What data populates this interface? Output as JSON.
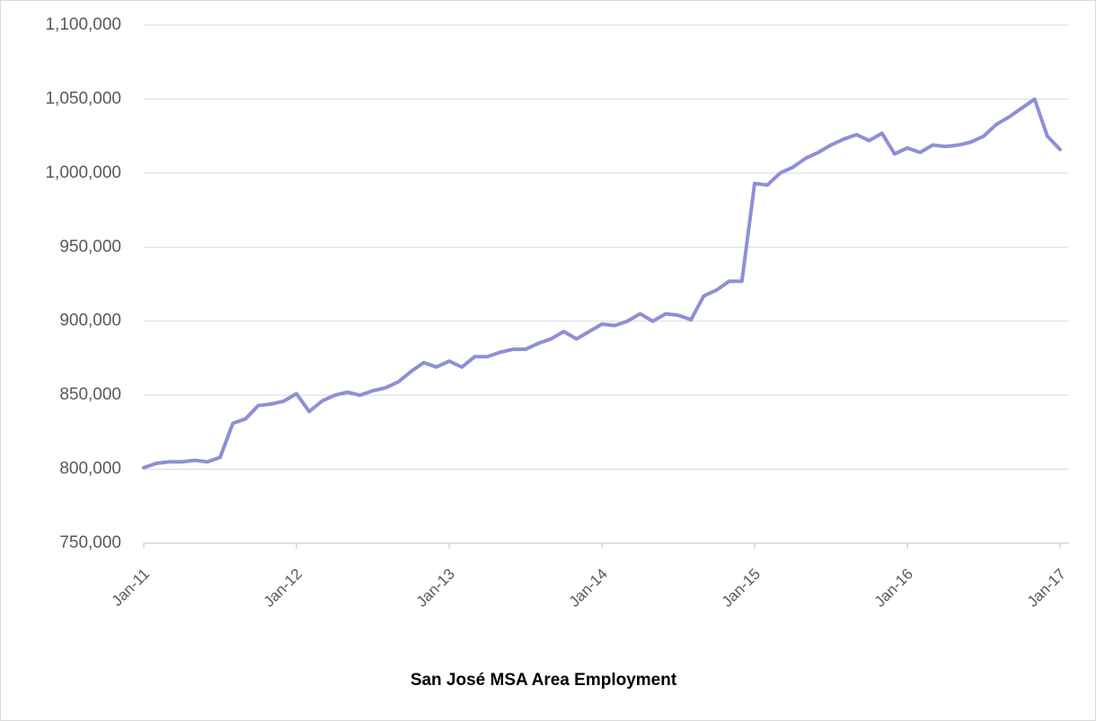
{
  "chart_data": {
    "type": "line",
    "title": "San José MSA Area Employment",
    "categories": [
      "Jan-11",
      null,
      null,
      null,
      null,
      null,
      null,
      null,
      null,
      null,
      null,
      null,
      "Jan-12",
      null,
      null,
      null,
      null,
      null,
      null,
      null,
      null,
      null,
      null,
      null,
      "Jan-13",
      null,
      null,
      null,
      null,
      null,
      null,
      null,
      null,
      null,
      null,
      null,
      "Jan-14",
      null,
      null,
      null,
      null,
      null,
      null,
      null,
      null,
      null,
      null,
      null,
      "Jan-15",
      null,
      null,
      null,
      null,
      null,
      null,
      null,
      null,
      null,
      null,
      null,
      "Jan-16",
      null,
      null,
      null,
      null,
      null,
      null,
      null,
      null,
      null,
      null,
      null,
      "Jan-17"
    ],
    "series": [
      {
        "color": "#8e8fd6",
        "values": [
          801000,
          804000,
          805000,
          805000,
          806000,
          805000,
          808000,
          831000,
          834000,
          843000,
          844000,
          846000,
          851000,
          839000,
          846000,
          850000,
          852000,
          850000,
          853000,
          855000,
          859000,
          866000,
          872000,
          869000,
          873000,
          869000,
          876000,
          876000,
          879000,
          881000,
          881000,
          885000,
          888000,
          893000,
          888000,
          893000,
          898000,
          897000,
          900000,
          905000,
          900000,
          905000,
          904000,
          901000,
          917000,
          921000,
          927000,
          927000,
          993000,
          992000,
          1000000,
          1004000,
          1010000,
          1014000,
          1019000,
          1023000,
          1026000,
          1022000,
          1027000,
          1013000,
          1017000,
          1014000,
          1019000,
          1018000,
          1019000,
          1021000,
          1025000,
          1033000,
          1038000,
          1044000,
          1050000,
          1025000,
          1016000
        ]
      }
    ],
    "ylim": [
      750000,
      1100000
    ],
    "yticks": [
      {
        "value": 750000,
        "label": "750,000"
      },
      {
        "value": 800000,
        "label": "800,000"
      },
      {
        "value": 850000,
        "label": "850,000"
      },
      {
        "value": 900000,
        "label": "900,000"
      },
      {
        "value": 950000,
        "label": "950,000"
      },
      {
        "value": 1000000,
        "label": "1,000,000"
      },
      {
        "value": 1050000,
        "label": "1,050,000"
      },
      {
        "value": 1100000,
        "label": "1,100,000"
      }
    ],
    "grid": true
  }
}
